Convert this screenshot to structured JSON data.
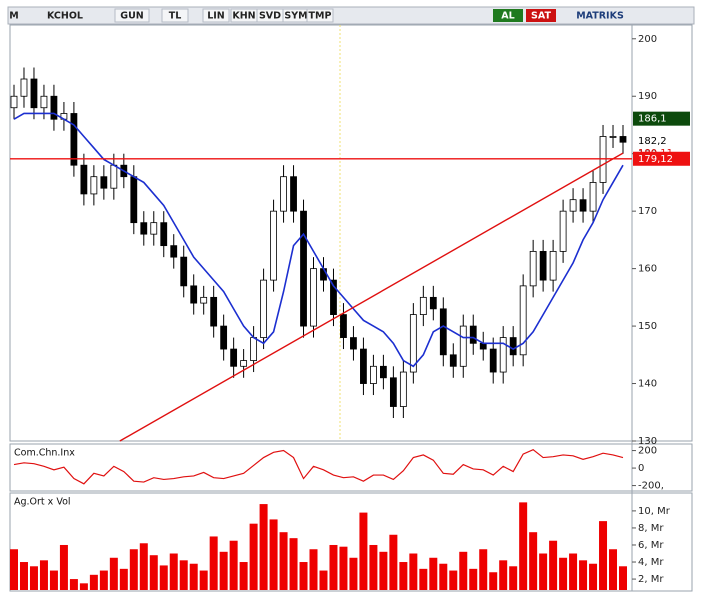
{
  "toolbar": {
    "items": [
      "M",
      "KCHOL",
      "GUN",
      "TL",
      "LIN",
      "KHN",
      "SVD",
      "SYM",
      "TMP",
      "AL",
      "SAT",
      "MATRIKS"
    ]
  },
  "chart_data": [
    {
      "type": "candlestick",
      "open": [
        188,
        190,
        193,
        188,
        190,
        186,
        187,
        178,
        173,
        176,
        174,
        178,
        176,
        168,
        166,
        168,
        164,
        162,
        157,
        154,
        155,
        150,
        146,
        143,
        144,
        148,
        158,
        170,
        176,
        170,
        150,
        160,
        158,
        152,
        148,
        146,
        140,
        143,
        141,
        136,
        142,
        152,
        155,
        153,
        145,
        143,
        150,
        147,
        146,
        142,
        148,
        145,
        157,
        163,
        158,
        163,
        170,
        172,
        170,
        175,
        183,
        183
      ],
      "high": [
        192,
        195,
        195,
        192,
        192,
        189,
        189,
        180,
        178,
        178,
        180,
        180,
        178,
        170,
        170,
        170,
        166,
        164,
        159,
        157,
        157,
        152,
        148,
        146,
        150,
        160,
        172,
        178,
        178,
        172,
        162,
        162,
        160,
        154,
        150,
        148,
        145,
        145,
        143,
        144,
        154,
        157,
        157,
        155,
        147,
        152,
        152,
        149,
        148,
        150,
        150,
        159,
        165,
        165,
        165,
        172,
        174,
        174,
        177,
        185,
        185,
        185
      ],
      "low": [
        186,
        188,
        186,
        186,
        184,
        184,
        176,
        171,
        171,
        172,
        172,
        174,
        166,
        164,
        164,
        162,
        160,
        155,
        152,
        152,
        148,
        144,
        141,
        141,
        142,
        146,
        156,
        168,
        168,
        148,
        148,
        156,
        150,
        146,
        144,
        138,
        138,
        139,
        134,
        134,
        140,
        150,
        151,
        143,
        141,
        141,
        145,
        144,
        140,
        140,
        143,
        143,
        155,
        156,
        156,
        161,
        168,
        168,
        168,
        173,
        181,
        180
      ],
      "close": [
        190,
        193,
        188,
        190,
        186,
        187,
        178,
        173,
        176,
        174,
        178,
        176,
        168,
        166,
        168,
        164,
        162,
        157,
        154,
        155,
        150,
        146,
        143,
        144,
        148,
        158,
        170,
        176,
        170,
        150,
        160,
        158,
        152,
        148,
        146,
        140,
        143,
        141,
        136,
        142,
        152,
        155,
        153,
        145,
        143,
        150,
        147,
        146,
        142,
        148,
        145,
        157,
        163,
        158,
        163,
        170,
        172,
        170,
        175,
        183,
        183,
        182
      ],
      "ma": [
        186,
        187,
        187,
        187,
        187,
        186,
        185,
        183,
        181,
        179,
        178,
        177,
        176,
        175,
        173,
        171,
        168,
        165,
        162,
        160,
        158,
        156,
        153,
        150,
        148,
        147,
        149,
        156,
        164,
        166,
        163,
        160,
        157,
        155,
        153,
        151,
        150,
        149,
        147,
        144,
        143,
        145,
        149,
        150,
        149,
        148,
        148,
        147,
        147,
        147,
        146,
        147,
        149,
        152,
        155,
        158,
        161,
        165,
        168,
        172,
        175,
        178
      ],
      "ma_color": "#1c2fd0",
      "trendline": {
        "x": [
          10.6,
          61
        ],
        "y": [
          130,
          180.1
        ],
        "color": "#e01010"
      },
      "price_labels": [
        {
          "value": 186.1,
          "label": "186,1",
          "bg": "#0c4a0c",
          "color": "#ffffff"
        },
        {
          "value": 182.2,
          "label": "182,2",
          "bg": null,
          "color": "#000000"
        },
        {
          "value": 180.11,
          "label": "180,11",
          "bg": null,
          "color": "#e01010"
        },
        {
          "value": 179.12,
          "label": "179,12",
          "bg": "#ee1111",
          "color": "#ffffff"
        }
      ],
      "ylim": [
        130,
        202.4
      ],
      "yticks": [
        130,
        140,
        150,
        160,
        170,
        180,
        190,
        200
      ]
    },
    {
      "type": "line",
      "title": "Com.Chn.Inx",
      "values": [
        40,
        60,
        50,
        20,
        -20,
        10,
        -120,
        -180,
        -60,
        -90,
        20,
        -40,
        -150,
        -160,
        -110,
        -130,
        -120,
        -100,
        -90,
        -50,
        -110,
        -120,
        -90,
        -60,
        30,
        120,
        180,
        200,
        120,
        -120,
        20,
        -20,
        -80,
        -110,
        -100,
        -150,
        -80,
        -80,
        -130,
        -30,
        120,
        150,
        90,
        -60,
        -70,
        40,
        -10,
        -20,
        -80,
        20,
        -40,
        160,
        210,
        120,
        130,
        150,
        140,
        100,
        130,
        170,
        150,
        120
      ],
      "color": "#e01010",
      "ylim": [
        -262,
        275
      ],
      "yticks": [
        200,
        0,
        {
          "value": -200,
          "label": "-200,"
        }
      ]
    },
    {
      "type": "bar",
      "title": "Ag.Ort x Vol",
      "values": [
        5.5,
        4,
        3.5,
        4.2,
        3,
        6,
        2,
        1.5,
        2.5,
        3,
        4.5,
        3.2,
        5.5,
        6.2,
        4.8,
        3.6,
        5,
        4.2,
        3.8,
        3,
        7,
        5.2,
        6.5,
        4,
        8.5,
        10.8,
        9,
        7.5,
        6.8,
        4,
        5.5,
        3,
        6,
        5.8,
        4.5,
        9.8,
        6,
        5.2,
        7.2,
        4,
        5,
        3.2,
        4.5,
        3.8,
        3,
        5.2,
        3.2,
        5.5,
        2.8,
        4.2,
        3.5,
        11,
        7.5,
        5,
        6.5,
        4.5,
        5,
        4.2,
        3.8,
        8.8,
        5.5,
        3.5
      ],
      "color": "#ee0000",
      "ylim": [
        0.6,
        12.1
      ],
      "yticks": [
        {
          "value": 2,
          "label": "2, Mr"
        },
        {
          "value": 4,
          "label": "4, Mr"
        },
        {
          "value": 6,
          "label": "6, Mr"
        },
        {
          "value": 8,
          "label": "8, Mr"
        },
        {
          "value": 10,
          "label": "10, Mr"
        }
      ]
    }
  ]
}
